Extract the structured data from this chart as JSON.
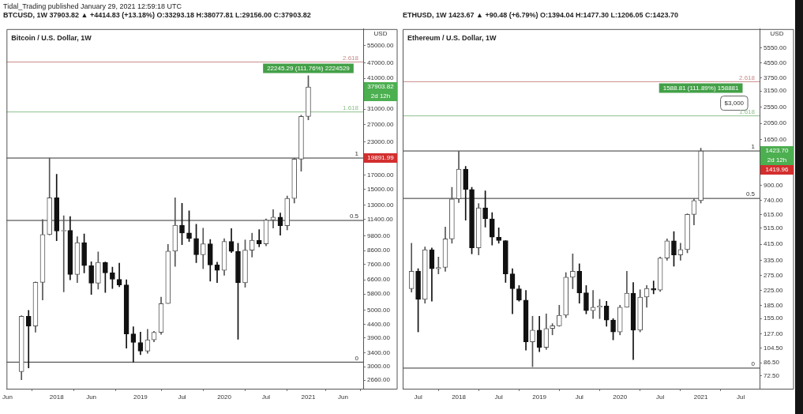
{
  "chart_data": [
    {
      "type": "candlestick",
      "title": "Bitcoin / U.S. Dollar, 1W",
      "subtitle": "Tidal_Trading published January 29, 2021 12:59:18 UTC\nBTCUSD, 1W 37903.82 ▲ +4414.83 (+13.18%) O:33293.18 H:38077.81 L:29156.00 C:37903.82",
      "ylabel": "USD",
      "annotations": [
        {
          "text": "22245.29 (111.76%) 2224529",
          "x": "2021-01",
          "y": 47500
        },
        "37903.82",
        "2d 12h",
        "19891.99",
        {
          "text": "2.618",
          "y": 47500
        },
        {
          "text": "1.618",
          "y": 30200
        },
        {
          "text": "1",
          "y": 19891.99
        },
        {
          "text": "0.5",
          "y": 11300
        },
        {
          "text": "0",
          "y": 3130
        }
      ],
      "x": [
        "2017-08",
        "2017-09",
        "2017-10",
        "2017-11",
        "2017-12",
        "2018-01",
        "2018-02",
        "2018-03",
        "2018-04",
        "2018-05",
        "2018-06",
        "2018-07",
        "2018-08",
        "2018-09",
        "2018-10",
        "2018-11",
        "2018-12",
        "2019-01",
        "2019-02",
        "2019-03",
        "2019-04",
        "2019-05",
        "2019-06",
        "2019-07",
        "2019-08",
        "2019-09",
        "2019-10",
        "2019-11",
        "2019-12",
        "2020-01",
        "2020-02",
        "2020-03",
        "2020-04",
        "2020-05",
        "2020-06",
        "2020-07",
        "2020-08",
        "2020-09",
        "2020-10",
        "2020-11",
        "2020-12",
        "2021-01"
      ],
      "ohlc": [
        [
          2870,
          4770,
          2670,
          4740
        ],
        [
          4740,
          5000,
          2970,
          4340
        ],
        [
          4340,
          6470,
          4110,
          6450
        ],
        [
          6450,
          11400,
          5500,
          9950
        ],
        [
          9950,
          19891.99,
          9900,
          13880
        ],
        [
          13880,
          17170,
          9400,
          10270
        ],
        [
          10270,
          11790,
          5920,
          10330
        ],
        [
          10330,
          11700,
          6600,
          6930
        ],
        [
          6930,
          9750,
          6430,
          9240
        ],
        [
          9240,
          10000,
          7030,
          7500
        ],
        [
          7500,
          7770,
          5780,
          6400
        ],
        [
          6400,
          8500,
          6070,
          7730
        ],
        [
          7730,
          7760,
          5880,
          7030
        ],
        [
          7030,
          7410,
          6100,
          6630
        ],
        [
          6630,
          7680,
          6200,
          6300
        ],
        [
          6300,
          6600,
          3550,
          4040
        ],
        [
          4040,
          4310,
          3130,
          3740
        ],
        [
          3740,
          4110,
          3350,
          3460
        ],
        [
          3460,
          4210,
          3390,
          3830
        ],
        [
          3830,
          4140,
          3760,
          4100
        ],
        [
          4100,
          5640,
          4030,
          5320
        ],
        [
          5320,
          9100,
          5320,
          8560
        ],
        [
          8560,
          13880,
          7450,
          10820
        ],
        [
          10820,
          13200,
          9080,
          10090
        ],
        [
          10090,
          12330,
          9330,
          9600
        ],
        [
          9600,
          10920,
          7710,
          8290
        ],
        [
          8290,
          10540,
          7300,
          9150
        ],
        [
          9150,
          9510,
          6520,
          7550
        ],
        [
          7550,
          7750,
          6430,
          7190
        ],
        [
          7190,
          9580,
          6870,
          9350
        ],
        [
          9350,
          10500,
          8450,
          8540
        ],
        [
          8540,
          9190,
          3850,
          6420
        ],
        [
          6420,
          9470,
          6170,
          8630
        ],
        [
          8630,
          10070,
          8110,
          9450
        ],
        [
          9450,
          10400,
          8900,
          9140
        ],
        [
          9140,
          11450,
          8980,
          11340
        ],
        [
          11340,
          12470,
          10550,
          11650
        ],
        [
          11650,
          12090,
          9880,
          10780
        ],
        [
          10780,
          14100,
          10370,
          13800
        ],
        [
          13800,
          19860,
          13230,
          19700
        ],
        [
          19700,
          29300,
          17650,
          28990
        ],
        [
          28990,
          41950,
          28130,
          37903.82
        ]
      ],
      "xlim": [
        "2017-05-28",
        "2021-08-28"
      ],
      "xticks": [
        {
          "value": "2017-06",
          "label": "Jun"
        },
        {
          "value": "2018-01",
          "label": "2018"
        },
        {
          "value": "2018-06",
          "label": "Jun"
        },
        {
          "value": "2019-01",
          "label": "2019"
        },
        {
          "value": "2019-07",
          "label": "Jul"
        },
        {
          "value": "2020-01",
          "label": "2020"
        },
        {
          "value": "2020-07",
          "label": "Jul"
        },
        {
          "value": "2021-01",
          "label": "2021"
        },
        {
          "value": "2021-06",
          "label": "Jun"
        }
      ],
      "ylim": [
        2460,
        64000
      ],
      "log": true,
      "yticks": [
        {
          "value": 2660,
          "label": "2660.00"
        },
        {
          "value": 3000,
          "label": "3000.00"
        },
        {
          "value": 3400,
          "label": "3400.00"
        },
        {
          "value": 3900,
          "label": "3900.00"
        },
        {
          "value": 4400,
          "label": "4400.00"
        },
        {
          "value": 5000,
          "label": "5000.00"
        },
        {
          "value": 5800,
          "label": "5800.00"
        },
        {
          "value": 6600,
          "label": "6600.00"
        },
        {
          "value": 7600,
          "label": "7600.00"
        },
        {
          "value": 8600,
          "label": "8600.00"
        },
        {
          "value": 9800,
          "label": "9800.00"
        },
        {
          "value": 11400,
          "label": "11400.00"
        },
        {
          "value": 13000,
          "label": "13000.00"
        },
        {
          "value": 15000,
          "label": "15000.00"
        },
        {
          "value": 17000,
          "label": "17000.00"
        },
        {
          "value": 23000,
          "label": "23000.00"
        },
        {
          "value": 27000,
          "label": "27000.00"
        },
        {
          "value": 31000,
          "label": "31000.00"
        },
        {
          "value": 41000,
          "label": "41000.00"
        },
        {
          "value": 47000,
          "label": "47000.00"
        },
        {
          "value": 55000,
          "label": "55000.00"
        }
      ],
      "ref_lines": [
        {
          "axis": "y",
          "value": 47500,
          "color": "#c98a8a"
        },
        {
          "axis": "y",
          "value": 30200,
          "color": "#8cc08c"
        },
        {
          "axis": "y",
          "value": 19891.99,
          "color": "#333333"
        },
        {
          "axis": "y",
          "value": 11300,
          "color": "#333333"
        },
        {
          "axis": "y",
          "value": 3130,
          "color": "#333333"
        }
      ]
    },
    {
      "type": "candlestick",
      "title": "Ethereum / U.S. Dollar, 1W",
      "subtitle": "ETHUSD, 1W 1423.67 ▲ +90.48 (+6.79%) O:1394.04 H:1477.30 L:1206.05 C:1423.70",
      "ylabel": "USD",
      "annotations": [
        {
          "text": "1588.81 (111.89%) 158881",
          "x": "2021-01",
          "y": 3560
        },
        {
          "text": "$3,000",
          "x": "2021-06",
          "y": 2680
        },
        "1423.70",
        "2d 12h",
        "1419.96",
        {
          "text": "2.618",
          "y": 3560
        },
        {
          "text": "1.618",
          "y": 2265
        },
        {
          "text": "1",
          "y": 1423.7
        },
        {
          "text": "0.5",
          "y": 760
        },
        {
          "text": "0",
          "y": 80.5
        }
      ],
      "x": [
        "2017-06",
        "2017-07",
        "2017-08",
        "2017-09",
        "2017-10",
        "2017-11",
        "2017-12",
        "2018-01",
        "2018-02",
        "2018-03",
        "2018-04",
        "2018-05",
        "2018-06",
        "2018-07",
        "2018-08",
        "2018-09",
        "2018-10",
        "2018-11",
        "2018-12",
        "2019-01",
        "2019-02",
        "2019-03",
        "2019-04",
        "2019-05",
        "2019-06",
        "2019-07",
        "2019-08",
        "2019-09",
        "2019-10",
        "2019-11",
        "2019-12",
        "2020-01",
        "2020-02",
        "2020-03",
        "2020-04",
        "2020-05",
        "2020-06",
        "2020-07",
        "2020-08",
        "2020-09",
        "2020-10",
        "2020-11",
        "2020-12",
        "2021-01"
      ],
      "ohlc": [
        [
          230,
          420,
          220,
          290
        ],
        [
          290,
          300,
          130,
          200
        ],
        [
          200,
          400,
          190,
          385
        ],
        [
          385,
          395,
          195,
          300
        ],
        [
          300,
          350,
          280,
          305
        ],
        [
          305,
          520,
          290,
          445
        ],
        [
          445,
          880,
          420,
          755
        ],
        [
          755,
          1419.96,
          720,
          1120
        ],
        [
          1120,
          1160,
          570,
          855
        ],
        [
          855,
          880,
          365,
          395
        ],
        [
          395,
          710,
          360,
          670
        ],
        [
          670,
          840,
          520,
          580
        ],
        [
          580,
          630,
          410,
          455
        ],
        [
          455,
          515,
          420,
          435
        ],
        [
          435,
          435,
          250,
          280
        ],
        [
          280,
          300,
          165,
          230
        ],
        [
          230,
          240,
          195,
          198
        ],
        [
          198,
          225,
          102,
          114
        ],
        [
          114,
          160,
          82,
          133
        ],
        [
          133,
          160,
          100,
          106
        ],
        [
          106,
          165,
          103,
          136
        ],
        [
          136,
          145,
          125,
          141
        ],
        [
          141,
          185,
          140,
          162
        ],
        [
          162,
          285,
          157,
          268
        ],
        [
          268,
          365,
          230,
          290
        ],
        [
          290,
          320,
          190,
          218
        ],
        [
          218,
          240,
          165,
          172
        ],
        [
          172,
          225,
          155,
          180
        ],
        [
          180,
          200,
          155,
          183
        ],
        [
          183,
          195,
          140,
          152
        ],
        [
          152,
          155,
          117,
          130
        ],
        [
          130,
          185,
          125,
          180
        ],
        [
          180,
          290,
          180,
          217
        ],
        [
          217,
          250,
          90,
          133
        ],
        [
          133,
          227,
          130,
          206
        ],
        [
          206,
          240,
          180,
          231
        ],
        [
          231,
          255,
          215,
          226
        ],
        [
          226,
          350,
          222,
          345
        ],
        [
          345,
          445,
          335,
          434
        ],
        [
          434,
          490,
          310,
          360
        ],
        [
          360,
          420,
          335,
          386
        ],
        [
          386,
          620,
          370,
          615
        ],
        [
          615,
          755,
          535,
          738
        ],
        [
          738,
          1477.3,
          715,
          1423.7
        ]
      ],
      "xlim": [
        "2017-04-22",
        "2021-09-24"
      ],
      "xticks": [
        {
          "value": "2017-07",
          "label": "Jul"
        },
        {
          "value": "2018-01",
          "label": "2018"
        },
        {
          "value": "2018-07",
          "label": "Jul"
        },
        {
          "value": "2019-01",
          "label": "2019"
        },
        {
          "value": "2019-07",
          "label": "Jul"
        },
        {
          "value": "2020-01",
          "label": "2020"
        },
        {
          "value": "2020-07",
          "label": "Jul"
        },
        {
          "value": "2021-01",
          "label": "2021"
        },
        {
          "value": "2021-07",
          "label": "Jul"
        }
      ],
      "ylim": [
        61.3,
        7140
      ],
      "log": true,
      "yticks": [
        {
          "value": 72.5,
          "label": "72.50"
        },
        {
          "value": 86.5,
          "label": "86.50"
        },
        {
          "value": 104.5,
          "label": "104.50"
        },
        {
          "value": 127,
          "label": "127.00"
        },
        {
          "value": 155,
          "label": "155.00"
        },
        {
          "value": 185,
          "label": "185.00"
        },
        {
          "value": 225,
          "label": "225.00"
        },
        {
          "value": 275,
          "label": "275.00"
        },
        {
          "value": 335,
          "label": "335.00"
        },
        {
          "value": 415,
          "label": "415.00"
        },
        {
          "value": 515,
          "label": "515.00"
        },
        {
          "value": 615,
          "label": "615.00"
        },
        {
          "value": 740,
          "label": "740.00"
        },
        {
          "value": 900,
          "label": "900.00"
        },
        {
          "value": 1650,
          "label": "1650.00"
        },
        {
          "value": 2050,
          "label": "2050.00"
        },
        {
          "value": 2550,
          "label": "2550.00"
        },
        {
          "value": 3150,
          "label": "3150.00"
        },
        {
          "value": 3750,
          "label": "3750.00"
        },
        {
          "value": 4550,
          "label": "4550.00"
        },
        {
          "value": 5550,
          "label": "5550.00"
        }
      ],
      "ref_lines": [
        {
          "axis": "y",
          "value": 3560,
          "color": "#c98a8a"
        },
        {
          "axis": "y",
          "value": 2265,
          "color": "#8cc08c"
        },
        {
          "axis": "y",
          "value": 1423.7,
          "color": "#333333"
        },
        {
          "axis": "y",
          "value": 760,
          "color": "#333333"
        },
        {
          "axis": "y",
          "value": 80.5,
          "color": "#333333"
        }
      ]
    }
  ]
}
